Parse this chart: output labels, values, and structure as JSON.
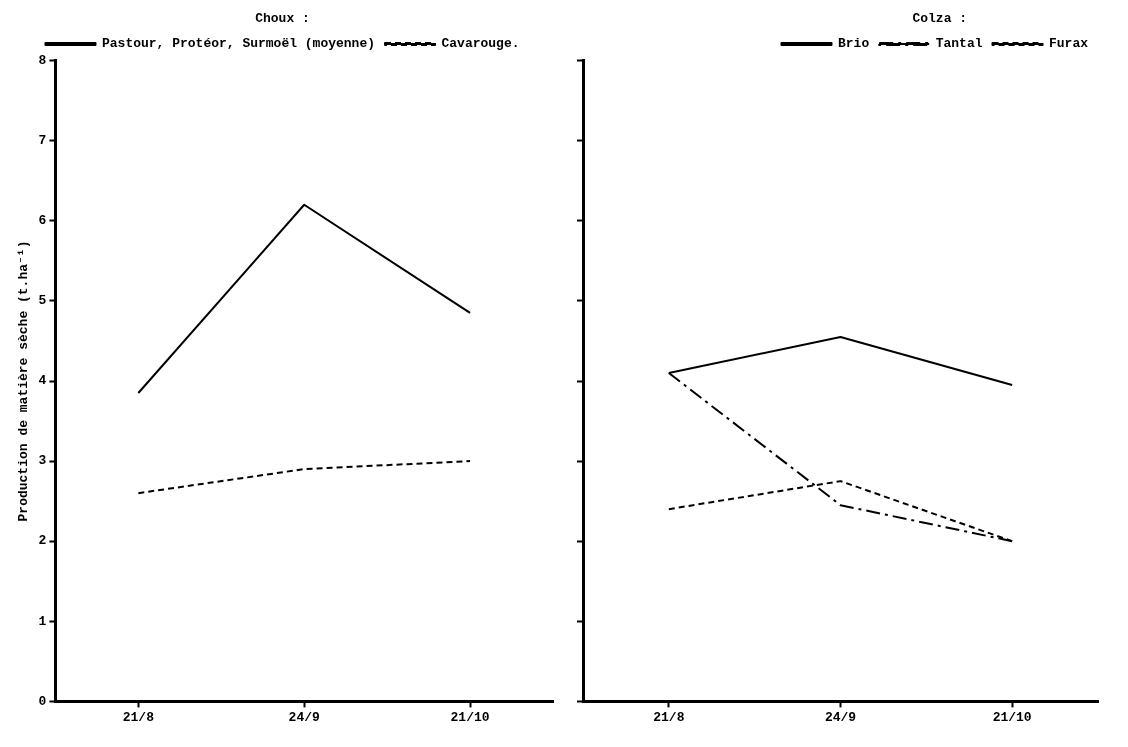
{
  "chart_data": [
    {
      "type": "line",
      "legend_title": "Choux :",
      "ylabel": "Production de matière sèche (t.ha⁻¹)",
      "categories": [
        "21/8",
        "24/9",
        "21/10"
      ],
      "ylim": [
        0,
        8
      ],
      "yticks": [
        0,
        1,
        2,
        3,
        4,
        5,
        6,
        7,
        8
      ],
      "grid": false,
      "legend": "top",
      "marker": "none",
      "series": [
        {
          "name": "Pastour, Protéor, Surmoël (moyenne)",
          "color": "#000000",
          "line_style": "solid",
          "values": [
            3.85,
            6.2,
            4.85
          ]
        },
        {
          "name": "Cavarouge.",
          "color": "#000000",
          "line_style": "dotted",
          "values": [
            2.6,
            2.9,
            3.0
          ]
        }
      ]
    },
    {
      "type": "line",
      "legend_title": "Colza :",
      "categories": [
        "21/8",
        "24/9",
        "21/10"
      ],
      "ylim": [
        0,
        8
      ],
      "yticks": [
        0,
        1,
        2,
        3,
        4,
        5,
        6,
        7,
        8
      ],
      "tick_labels": "x",
      "grid": false,
      "legend": "top right",
      "marker": "none",
      "series": [
        {
          "name": "Brio",
          "color": "#000000",
          "line_style": "solid",
          "values": [
            4.1,
            4.55,
            3.95
          ]
        },
        {
          "name": "Tantal",
          "color": "#000000",
          "line_style": "dashed",
          "values": [
            4.1,
            2.45,
            2.0
          ]
        },
        {
          "name": "Furax",
          "color": "#000000",
          "line_style": "dotted",
          "values": [
            2.4,
            2.75,
            2.0
          ]
        }
      ]
    }
  ]
}
